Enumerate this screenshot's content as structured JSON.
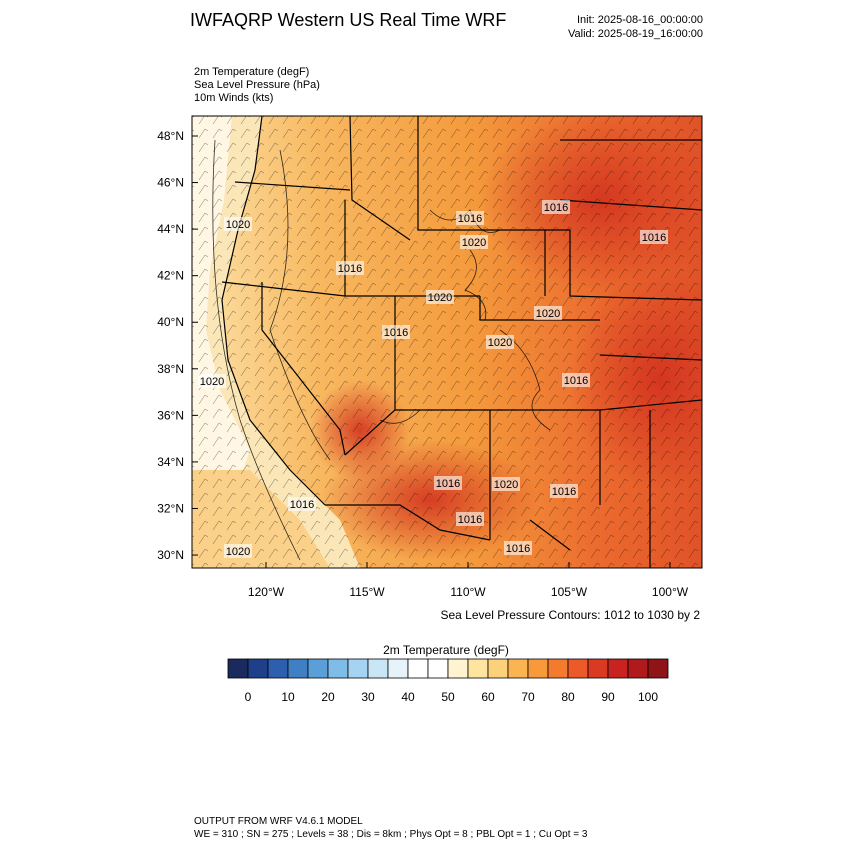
{
  "header": {
    "title": "IWFAQRP Western US Real Time WRF",
    "init": "Init: 2025-08-16_00:00:00",
    "valid": "Valid: 2025-08-19_16:00:00"
  },
  "fields": [
    "2m Temperature   (degF)",
    "Sea Level Pressure   (hPa)",
    "10m Winds   (kts)"
  ],
  "map": {
    "lat_ticks": [
      {
        "value": 48,
        "label": "48°N"
      },
      {
        "value": 46,
        "label": "46°N"
      },
      {
        "value": 44,
        "label": "44°N"
      },
      {
        "value": 42,
        "label": "42°N"
      },
      {
        "value": 40,
        "label": "40°N"
      },
      {
        "value": 38,
        "label": "38°N"
      },
      {
        "value": 36,
        "label": "36°N"
      },
      {
        "value": 34,
        "label": "34°N"
      },
      {
        "value": 32,
        "label": "32°N"
      },
      {
        "value": 30,
        "label": "30°N"
      }
    ],
    "lon_ticks": [
      {
        "value": -120,
        "label": "120°W"
      },
      {
        "value": -115,
        "label": "115°W"
      },
      {
        "value": -110,
        "label": "110°W"
      },
      {
        "value": -105,
        "label": "105°W"
      },
      {
        "value": -100,
        "label": "100°W"
      }
    ],
    "contour_labels": [
      "1020",
      "1016",
      "1016",
      "1020",
      "1016",
      "1016",
      "1020",
      "1020",
      "1016",
      "1020",
      "1020",
      "1016",
      "1016",
      "1016",
      "1020",
      "1016",
      "1016",
      "1020",
      "1016"
    ],
    "contour_note": "Sea Level Pressure Contours: 1012 to 1030 by 2"
  },
  "colorbar": {
    "title": "2m Temperature  (degF)",
    "ticks": [
      0,
      10,
      20,
      30,
      40,
      50,
      60,
      70,
      80,
      90,
      100
    ],
    "colors": [
      "#1b2a5e",
      "#203f8a",
      "#2d5fae",
      "#3f7fc4",
      "#5a9fd8",
      "#7dbde8",
      "#a4d4f2",
      "#c9e6f7",
      "#e6f3fb",
      "#ffffff",
      "#ffffff",
      "#fff3d0",
      "#ffe4a0",
      "#fdd07a",
      "#fbb452",
      "#f99a3a",
      "#f47b2e",
      "#eb5a28",
      "#db3a22",
      "#c82320",
      "#b01a1c",
      "#8e1418"
    ]
  },
  "footer": [
    "OUTPUT FROM WRF V4.6.1 MODEL",
    "WE = 310 ; SN = 275 ; Levels = 38 ; Dis = 8km ; Phys Opt = 8 ; PBL Opt = 1 ; Cu Opt = 3"
  ]
}
